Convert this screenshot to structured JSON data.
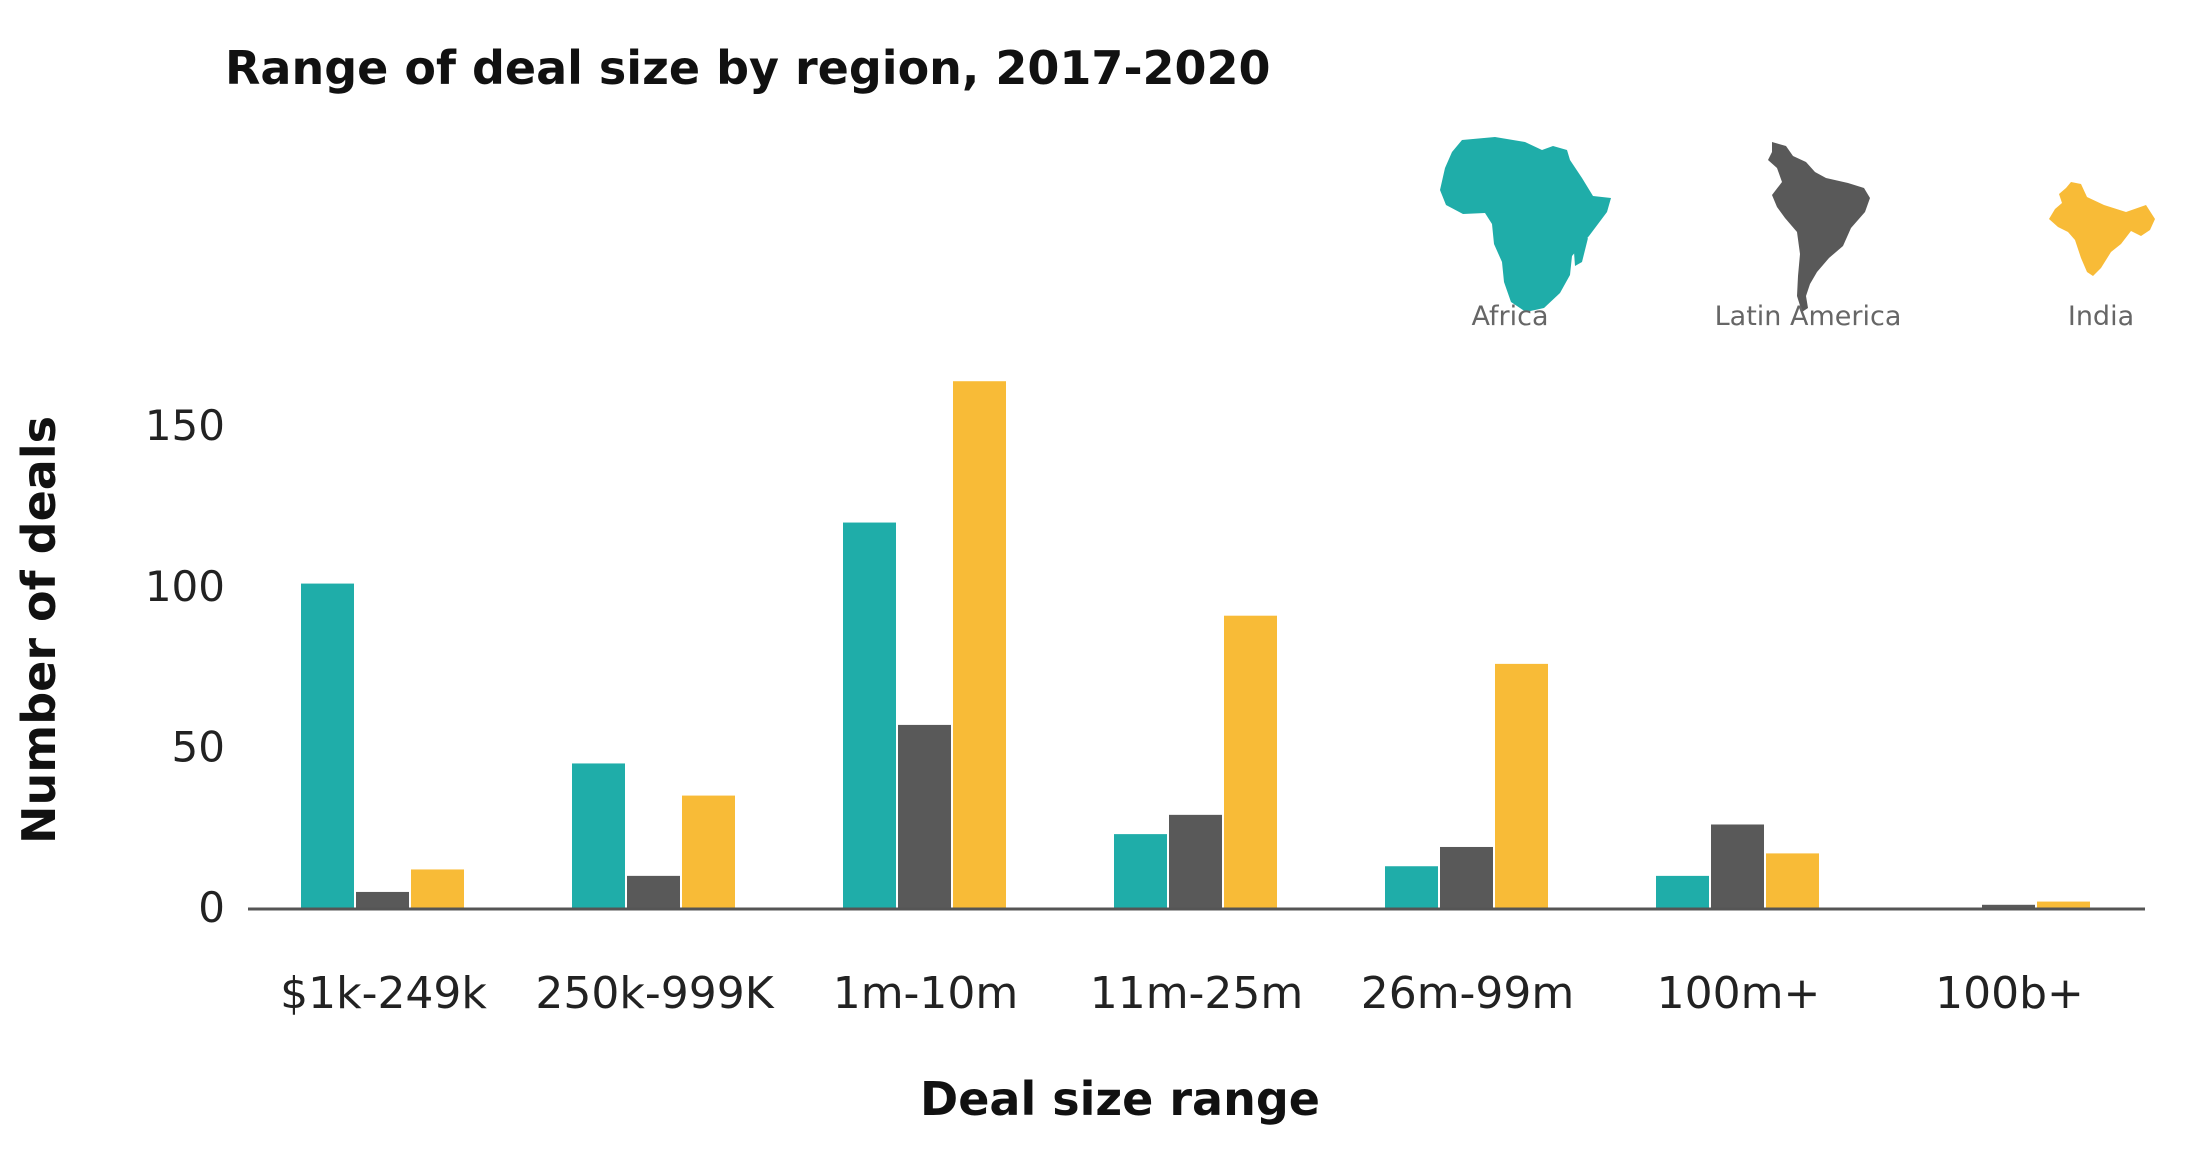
{
  "chart_data": {
    "type": "bar",
    "title": "Range of deal size by region, 2017-2020",
    "xlabel": "Deal size range",
    "ylabel": "Number of deals",
    "categories": [
      "$1k-249k",
      "250k-999K",
      "1m-10m",
      "11m-25m",
      "26m-99m",
      "100m+",
      "100b+"
    ],
    "series": [
      {
        "name": "Africa",
        "color": "#1fada9",
        "values": [
          101,
          45,
          120,
          23,
          13,
          10,
          0
        ]
      },
      {
        "name": "Latin America",
        "color": "#595959",
        "values": [
          5,
          10,
          57,
          29,
          19,
          26,
          1
        ]
      },
      {
        "name": "India",
        "color": "#f8bb37",
        "values": [
          12,
          35,
          164,
          91,
          76,
          17,
          2
        ]
      }
    ],
    "yticks": [
      0,
      50,
      100,
      150
    ],
    "ylim": [
      0,
      165
    ],
    "grid": false,
    "legend_placement": "top-right",
    "legend_icons": [
      "africa-map-icon",
      "latin-america-map-icon",
      "india-map-icon"
    ]
  }
}
